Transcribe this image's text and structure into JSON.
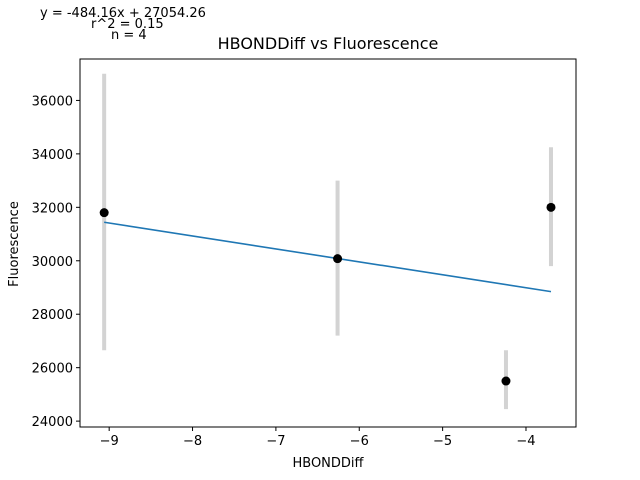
{
  "annotations": {
    "equation": "y = -484.16x + 27054.26",
    "r2": "r^2 = 0.15",
    "n": "n = 4"
  },
  "chart_data": {
    "type": "scatter",
    "title": "HBONDDiff vs Fluorescence",
    "xlabel": "HBONDDiff",
    "ylabel": "Fluorescence",
    "xlim": [
      -9.35,
      -3.4
    ],
    "ylim": [
      23780,
      37550
    ],
    "xticks": [
      -9,
      -8,
      -7,
      -6,
      -5,
      -4
    ],
    "xtick_labels": [
      "−9",
      "−8",
      "−7",
      "−6",
      "−5",
      "−4"
    ],
    "yticks": [
      24000,
      26000,
      28000,
      30000,
      32000,
      34000,
      36000
    ],
    "ytick_labels": [
      "24000",
      "26000",
      "28000",
      "30000",
      "32000",
      "34000",
      "36000"
    ],
    "grid": false,
    "points": [
      {
        "x": -9.06,
        "y": 31800,
        "err_low": 26650,
        "err_high": 37000
      },
      {
        "x": -6.26,
        "y": 30080,
        "err_low": 27200,
        "err_high": 33000
      },
      {
        "x": -4.24,
        "y": 25500,
        "err_low": 24450,
        "err_high": 26650
      },
      {
        "x": -3.7,
        "y": 32000,
        "err_low": 29800,
        "err_high": 34250
      }
    ],
    "fit_line": {
      "slope": -484.16,
      "intercept": 27054.26,
      "x_range": [
        -9.06,
        -3.7
      ]
    },
    "colors": {
      "points": "#000000",
      "errorbars": "#d3d3d3",
      "fit": "#1f77b4"
    }
  }
}
